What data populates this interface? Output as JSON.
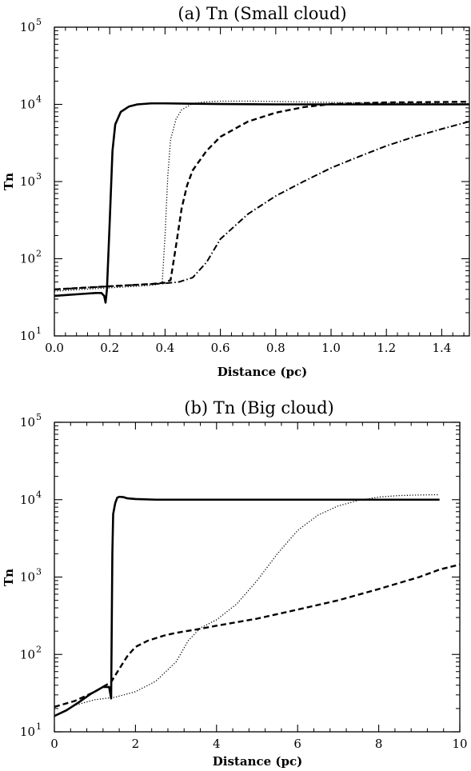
{
  "chart_data": [
    {
      "type": "line",
      "title": "(a) Tn (Small cloud)",
      "xlabel": "Distance (pc)",
      "ylabel": "Tn",
      "xlim": [
        0,
        1.5
      ],
      "ylim": [
        10,
        100000
      ],
      "yscale": "log",
      "grid": false,
      "x_ticks": [
        0.0,
        0.2,
        0.4,
        0.6,
        0.8,
        1.0,
        1.2,
        1.4
      ],
      "x_tick_labels": [
        "0.0",
        "0.2",
        "0.4",
        "0.6",
        "0.8",
        "1.0",
        "1.2",
        "1.4"
      ],
      "y_ticks": [
        10,
        100,
        1000,
        10000,
        100000
      ],
      "y_tick_labels": [
        {
          "base": "10",
          "exp": "1"
        },
        {
          "base": "10",
          "exp": "2"
        },
        {
          "base": "10",
          "exp": "3"
        },
        {
          "base": "10",
          "exp": "4"
        },
        {
          "base": "10",
          "exp": "5"
        }
      ],
      "series": [
        {
          "style": "solid",
          "x": [
            0.0,
            0.05,
            0.1,
            0.15,
            0.17,
            0.18,
            0.185,
            0.19,
            0.2,
            0.21,
            0.22,
            0.24,
            0.27,
            0.3,
            0.35,
            0.4,
            0.5,
            0.6,
            0.8,
            1.0,
            1.2,
            1.5
          ],
          "y": [
            33,
            34,
            35,
            36,
            36,
            33,
            27,
            40,
            300,
            2500,
            5500,
            8000,
            9400,
            10000,
            10300,
            10300,
            10200,
            10100,
            10000,
            10000,
            10000,
            10000
          ]
        },
        {
          "style": "dotted",
          "x": [
            0.0,
            0.1,
            0.2,
            0.3,
            0.37,
            0.39,
            0.4,
            0.41,
            0.42,
            0.44,
            0.46,
            0.5,
            0.55,
            0.6,
            0.7,
            0.8,
            1.0,
            1.2,
            1.5
          ],
          "y": [
            38,
            40,
            42,
            44,
            46,
            50,
            200,
            1200,
            3500,
            6500,
            8500,
            10300,
            10800,
            11000,
            11000,
            10900,
            10600,
            10400,
            10200
          ]
        },
        {
          "style": "dashed",
          "x": [
            0.0,
            0.1,
            0.2,
            0.3,
            0.35,
            0.4,
            0.42,
            0.44,
            0.46,
            0.48,
            0.5,
            0.55,
            0.6,
            0.7,
            0.8,
            0.9,
            1.0,
            1.2,
            1.5
          ],
          "y": [
            40,
            42,
            44,
            46,
            47,
            49,
            53,
            150,
            450,
            900,
            1400,
            2500,
            3800,
            6000,
            7800,
            9200,
            10100,
            10600,
            10800
          ]
        },
        {
          "style": "dashdot",
          "x": [
            0.0,
            0.1,
            0.2,
            0.3,
            0.4,
            0.45,
            0.5,
            0.55,
            0.6,
            0.7,
            0.8,
            0.9,
            1.0,
            1.1,
            1.2,
            1.3,
            1.4,
            1.5
          ],
          "y": [
            40,
            42,
            44,
            46,
            48,
            50,
            57,
            90,
            180,
            380,
            650,
            1000,
            1500,
            2100,
            2900,
            3800,
            4800,
            6000
          ]
        }
      ]
    },
    {
      "type": "line",
      "title": "(b) Tn (Big cloud)",
      "xlabel": "Distance (pc)",
      "ylabel": "Tn",
      "xlim": [
        0,
        10
      ],
      "ylim": [
        10,
        100000
      ],
      "yscale": "log",
      "grid": false,
      "x_ticks": [
        0,
        2,
        4,
        6,
        8,
        10
      ],
      "x_tick_labels": [
        "0",
        "2",
        "4",
        "6",
        "8",
        "10"
      ],
      "y_ticks": [
        10,
        100,
        1000,
        10000,
        100000
      ],
      "y_tick_labels": [
        {
          "base": "10",
          "exp": "1"
        },
        {
          "base": "10",
          "exp": "2"
        },
        {
          "base": "10",
          "exp": "3"
        },
        {
          "base": "10",
          "exp": "4"
        },
        {
          "base": "10",
          "exp": "5"
        }
      ],
      "series": [
        {
          "style": "solid",
          "x": [
            0.0,
            0.3,
            0.6,
            0.9,
            1.2,
            1.35,
            1.4,
            1.43,
            1.45,
            1.5,
            1.55,
            1.6,
            1.7,
            1.8,
            2.0,
            2.5,
            3.0,
            4.0,
            6.0,
            8.0,
            9.5
          ],
          "y": [
            16,
            19,
            24,
            31,
            38,
            38,
            27,
            2000,
            6500,
            9000,
            10600,
            10900,
            10800,
            10400,
            10200,
            10000,
            10000,
            10000,
            10000,
            10000,
            10000
          ]
        },
        {
          "style": "dotted",
          "x": [
            0.0,
            0.5,
            1.0,
            1.5,
            2.0,
            2.5,
            3.0,
            3.3,
            3.6,
            4.0,
            4.5,
            5.0,
            5.5,
            6.0,
            6.5,
            7.0,
            7.5,
            8.0,
            8.5,
            9.0,
            9.5
          ],
          "y": [
            16,
            22,
            26,
            28,
            33,
            45,
            80,
            150,
            220,
            280,
            450,
            900,
            2000,
            4000,
            6300,
            8300,
            9800,
            10800,
            11300,
            11500,
            11600
          ]
        },
        {
          "style": "dashed",
          "x": [
            0.0,
            0.5,
            1.0,
            1.4,
            1.6,
            1.8,
            2.0,
            2.3,
            2.7,
            3.0,
            3.5,
            4.0,
            5.0,
            6.0,
            7.0,
            8.0,
            9.0,
            9.5,
            10.0
          ],
          "y": [
            21,
            25,
            33,
            44,
            65,
            95,
            125,
            150,
            175,
            190,
            210,
            235,
            290,
            380,
            500,
            700,
            1000,
            1250,
            1450
          ]
        }
      ]
    }
  ]
}
